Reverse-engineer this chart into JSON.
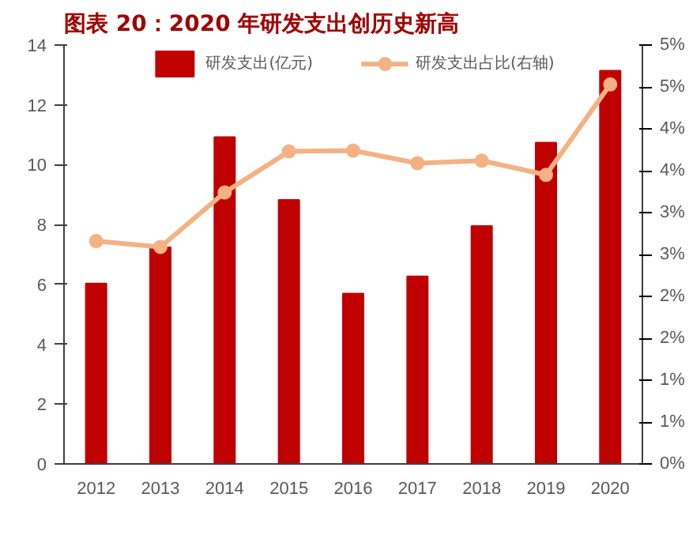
{
  "chart_data": {
    "type": "bar",
    "title": "图表 20：2020 年研发支出创历史新高",
    "categories": [
      "2012",
      "2013",
      "2014",
      "2015",
      "2016",
      "2017",
      "2018",
      "2019",
      "2020"
    ],
    "series": [
      {
        "name": "研发支出(亿元)",
        "color": "#c00000",
        "values": [
          6.03,
          7.24,
          10.92,
          8.82,
          5.69,
          6.27,
          7.95,
          10.74,
          13.14
        ]
      },
      {
        "name": "研发支出占比(右轴)",
        "type": "line",
        "axis": "y2",
        "color": "#f4b183",
        "marker": "circle",
        "values": [
          2.66,
          2.59,
          3.24,
          3.73,
          3.74,
          3.59,
          3.62,
          3.45,
          4.53
        ]
      }
    ],
    "ylim": [
      0,
      14
    ],
    "yticks": [
      0,
      2,
      4,
      6,
      8,
      10,
      12,
      14
    ],
    "y2lim": [
      0,
      5
    ],
    "y2ticks": [
      {
        "value": 0,
        "label": "0%"
      },
      {
        "value": 0.5,
        "label": "1%"
      },
      {
        "value": 1,
        "label": "1%"
      },
      {
        "value": 1.5,
        "label": "2%"
      },
      {
        "value": 2,
        "label": "2%"
      },
      {
        "value": 2.5,
        "label": "3%"
      },
      {
        "value": 3,
        "label": "3%"
      },
      {
        "value": 3.5,
        "label": "4%"
      },
      {
        "value": 4,
        "label": "4%"
      },
      {
        "value": 4.5,
        "label": "5%"
      },
      {
        "value": 5,
        "label": "5%"
      }
    ],
    "grid": false,
    "legend": "top"
  }
}
